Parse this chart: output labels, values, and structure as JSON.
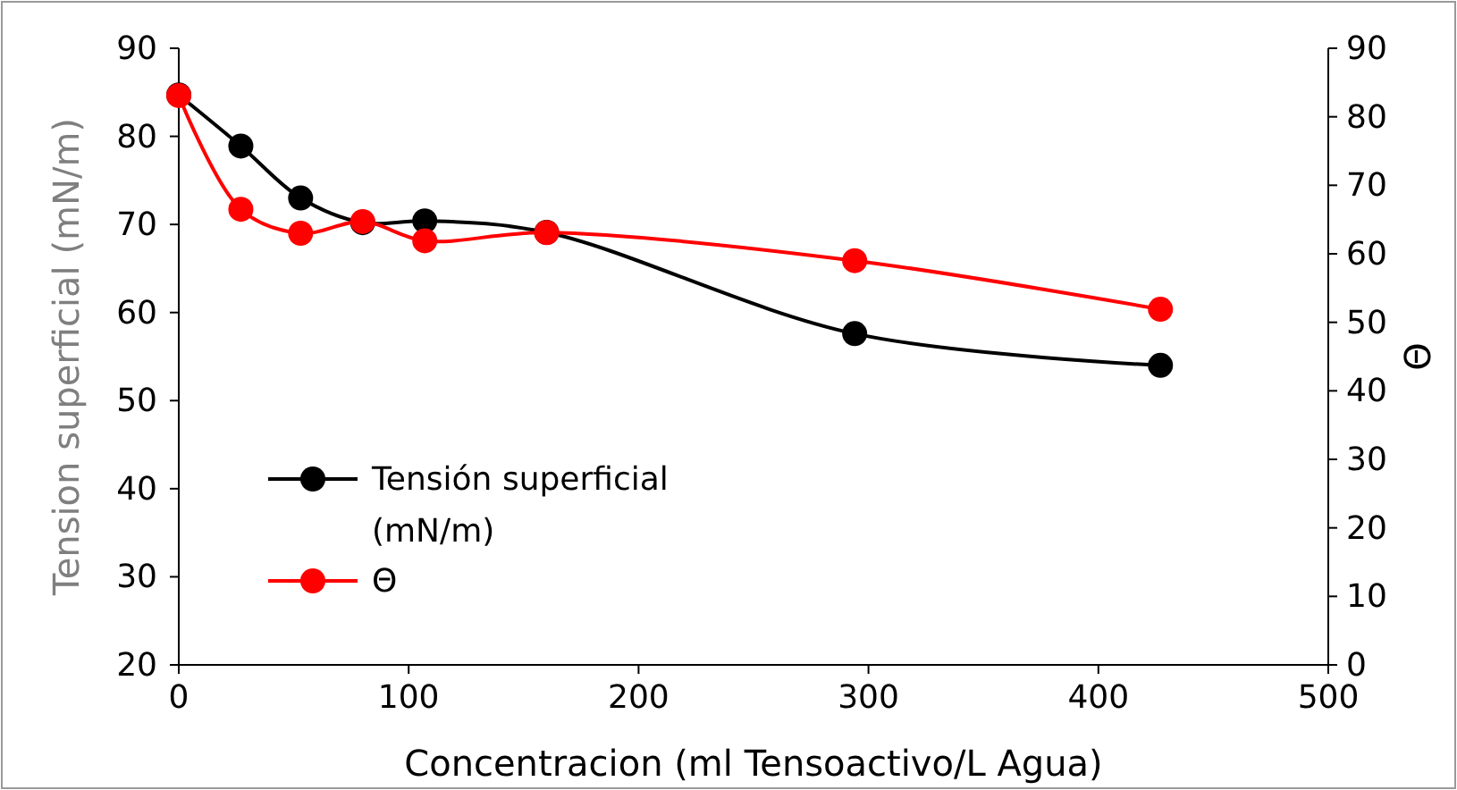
{
  "chart_data": {
    "type": "line",
    "xlabel": "Concentracion (ml Tensoactivo/L Agua)",
    "ylabel": "Tension superficial (mN/m)",
    "y2label": "Θ",
    "x": [
      0,
      27,
      53,
      80,
      107,
      160,
      294,
      427
    ],
    "series": [
      {
        "name": "Tensión superficial (mN/m)",
        "color": "#000000",
        "values": [
          84.7,
          78.9,
          73.0,
          70.2,
          70.4,
          69.1,
          57.6,
          54.0
        ]
      },
      {
        "name": "Θ",
        "color": "#ff0000",
        "axis": "y2",
        "values": [
          83.1,
          66.5,
          63.0,
          64.7,
          61.9,
          63.1,
          59.0,
          51.9
        ]
      }
    ],
    "xlim": [
      0,
      500
    ],
    "xticks": [
      0,
      100,
      200,
      300,
      400,
      500
    ],
    "ylim": [
      20,
      90
    ],
    "yticks": [
      20,
      30,
      40,
      50,
      60,
      70,
      80,
      90
    ],
    "y2lim": [
      0,
      90
    ],
    "y2ticks": [
      0,
      10,
      20,
      30,
      40,
      50,
      60,
      70,
      80,
      90
    ],
    "grid": false,
    "legend": "bottom left",
    "marker": "circle",
    "line_style": "solid"
  }
}
